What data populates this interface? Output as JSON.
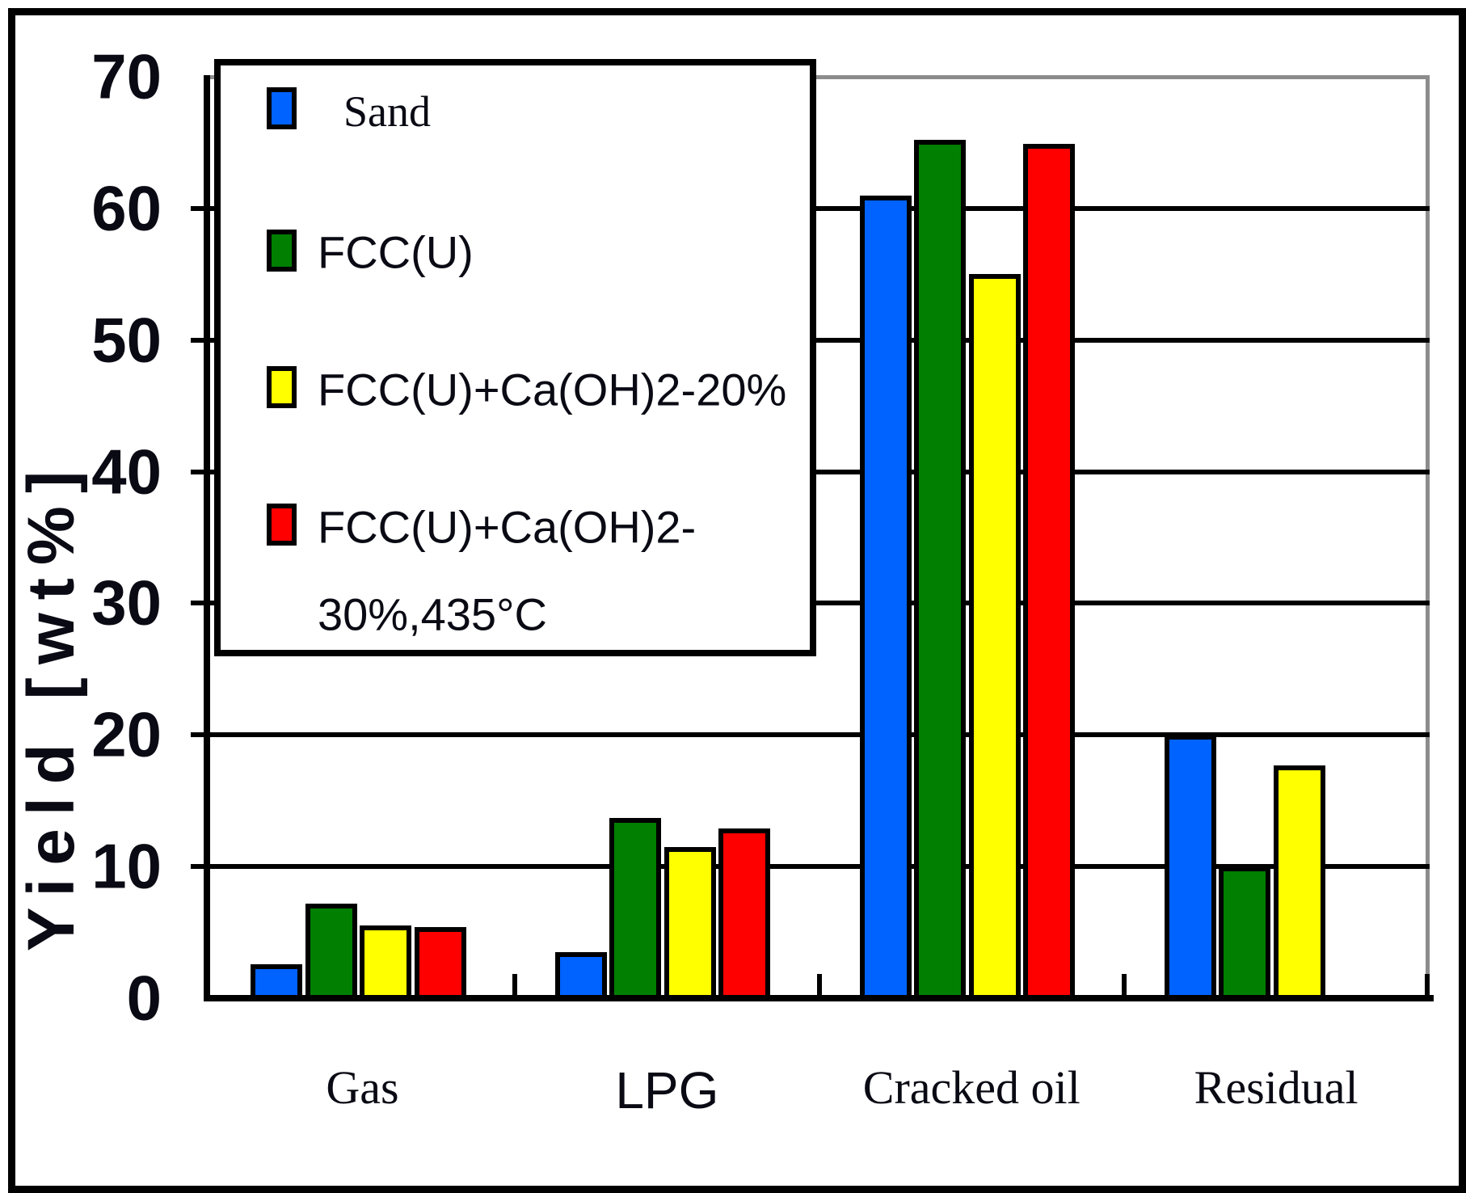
{
  "figure": {
    "ylabel": "Yield [wt%]",
    "y_tick_labels": [
      "70",
      "60",
      "50",
      "40",
      "30",
      "20",
      "10",
      "0"
    ],
    "x_labels": [
      "Gas",
      "LPG",
      "Cracked oil",
      "Residual"
    ],
    "legend_rows": [
      {
        "label": "Sand",
        "color": "#0062ff"
      },
      {
        "label": "FCC(U)",
        "color": "#007f00"
      },
      {
        "label": "FCC(U)+Ca(OH)2-20%",
        "color": "#ffff00"
      },
      {
        "label": "FCC(U)+Ca(OH)2-",
        "label2": "30%,435°C",
        "color": "#ff0000"
      }
    ],
    "ink_color": "#000000",
    "plot_border_gray": "#8c8c8c"
  },
  "chart_data": {
    "type": "bar",
    "title": "",
    "xlabel": "",
    "ylabel": "Yield [wt%]",
    "ylim": [
      0,
      70
    ],
    "ytick_interval": 10,
    "grid": true,
    "legend_position": "upper-left-overlay",
    "categories": [
      "Gas",
      "LPG",
      "Cracked oil",
      "Residual"
    ],
    "series": [
      {
        "name": "Sand",
        "color": "#0062ff",
        "values": [
          2.6,
          3.5,
          61.0,
          20.0
        ]
      },
      {
        "name": "FCC(U)",
        "color": "#007f00",
        "values": [
          7.2,
          13.7,
          65.2,
          10.0
        ]
      },
      {
        "name": "FCC(U)+Ca(OH)2-20%",
        "color": "#ffff00",
        "values": [
          5.5,
          11.5,
          55.0,
          17.7
        ]
      },
      {
        "name": "FCC(U)+Ca(OH)2-30%,435°C",
        "color": "#ff0000",
        "values": [
          5.4,
          12.9,
          64.9,
          null
        ]
      }
    ]
  }
}
